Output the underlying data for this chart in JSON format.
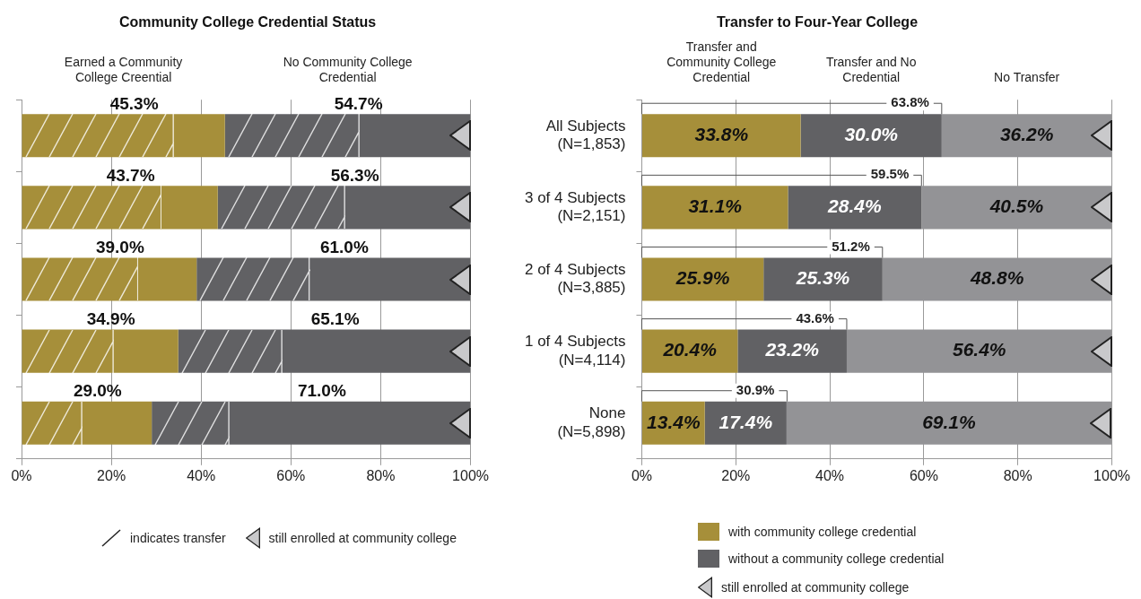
{
  "chart_data": [
    {
      "type": "bar",
      "orientation": "horizontal",
      "stacked": true,
      "title": "Community College Credential Status",
      "categories": [
        null,
        null,
        null,
        null,
        null
      ],
      "series": [
        {
          "name": "Earned a Community College Creential",
          "color": "#a68f3a",
          "values": [
            45.3,
            43.7,
            39.0,
            34.9,
            29.0
          ],
          "value_labels": [
            "45.3%",
            "43.7%",
            "39.0%",
            "34.9%",
            "29.0%"
          ]
        },
        {
          "name": "No Community College Credential",
          "color": "#616164",
          "values": [
            54.7,
            56.3,
            61.0,
            65.1,
            71.0
          ],
          "value_labels": [
            "54.7%",
            "56.3%",
            "61.0%",
            "65.1%",
            "71.0%"
          ]
        }
      ],
      "xlim": [
        0,
        100
      ],
      "xticks": [
        {
          "value": 0,
          "label": "0%"
        },
        {
          "value": 20,
          "label": "20%"
        },
        {
          "value": 40,
          "label": "40%"
        },
        {
          "value": 60,
          "label": "60%"
        },
        {
          "value": 80,
          "label": "80%"
        },
        {
          "value": 100,
          "label": "100%"
        }
      ],
      "grid": "x",
      "tick_labels": "x",
      "annotations": [
        "indicates transfer",
        "still enrolled at community college"
      ]
    },
    {
      "type": "bar",
      "orientation": "horizontal",
      "stacked": true,
      "title": "Transfer to Four-Year College",
      "categories": [
        "All Subjects\n(N=1,853)",
        "3 of 4 Subjects\n(N=2,151)",
        "2 of 4 Subjects\n(N=3,885)",
        "1 of 4 Subjects\n(N=4,114)",
        "None\n(N=5,898)"
      ],
      "series": [
        {
          "name": "Transfer and Community College Credential",
          "color": "#a68f3a",
          "values": [
            33.8,
            31.1,
            25.9,
            20.4,
            13.4
          ],
          "value_labels": [
            "33.8%",
            "31.1%",
            "25.9%",
            "20.4%",
            "13.4%"
          ]
        },
        {
          "name": "Transfer and No Credential",
          "color": "#616164",
          "values": [
            30.0,
            28.4,
            25.3,
            23.2,
            17.4
          ],
          "value_labels": [
            "30.0%",
            "28.4%",
            "25.3%",
            "23.2%",
            "17.4%"
          ]
        },
        {
          "name": "No Transfer",
          "color": "#939396",
          "values": [
            36.2,
            40.5,
            48.8,
            56.4,
            69.1
          ],
          "value_labels": [
            "36.2%",
            "40.5%",
            "48.8%",
            "56.4%",
            "69.1%"
          ]
        }
      ],
      "xlim": [
        0,
        100
      ],
      "xticks": [
        {
          "value": 0,
          "label": "0%"
        },
        {
          "value": 20,
          "label": "20%"
        },
        {
          "value": 40,
          "label": "40%"
        },
        {
          "value": 60,
          "label": "60%"
        },
        {
          "value": 80,
          "label": "80%"
        },
        {
          "value": 100,
          "label": "100%"
        }
      ],
      "grid": "x",
      "annotations": [
        {
          "text": "63.8%",
          "x": 63.8,
          "y": "All Subjects\n(N=1,853)"
        },
        {
          "text": "59.5%",
          "x": 59.5,
          "y": "3 of 4 Subjects\n(N=2,151)"
        },
        {
          "text": "51.2%",
          "x": 51.2,
          "y": "2 of 4 Subjects\n(N=3,885)"
        },
        {
          "text": "43.6%",
          "x": 43.6,
          "y": "1 of 4 Subjects\n(N=4,114)"
        },
        {
          "text": "30.9%",
          "x": 30.9,
          "y": "None\n(N=5,898)"
        },
        "with community college credential",
        "without a community college credential",
        "still enrolled at community college"
      ]
    }
  ]
}
